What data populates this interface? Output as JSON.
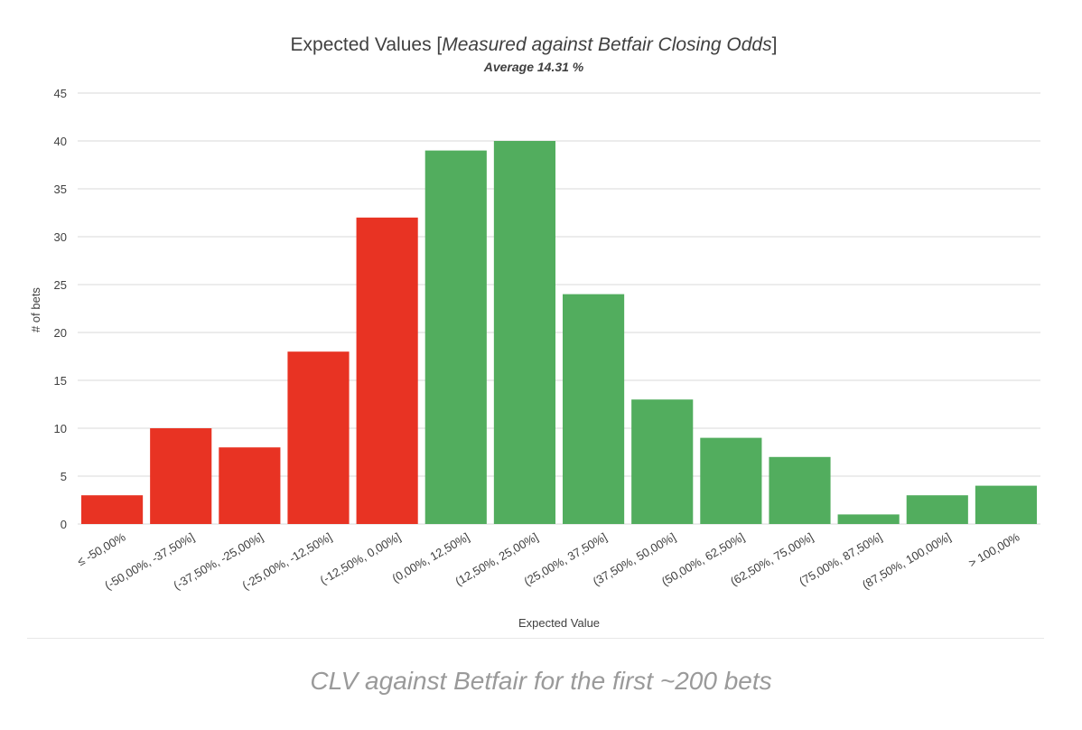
{
  "chart_data": {
    "type": "bar",
    "title_prefix": "Expected Values [",
    "title_emphasis": "Measured against Betfair Closing Odds",
    "title_suffix": "]",
    "subtitle": "Average 14.31 %",
    "xlabel": "Expected Value",
    "ylabel": "# of bets",
    "ylim": [
      0,
      45
    ],
    "yticks": [
      0,
      5,
      10,
      15,
      20,
      25,
      30,
      35,
      40,
      45
    ],
    "grid": true,
    "categories": [
      "≤ -50,00%",
      "(-50,00%, -37,50%]",
      "(-37,50%, -25,00%]",
      "(-25,00%, -12,50%]",
      "(-12,50%, 0,00%]",
      "(0,00%, 12,50%]",
      "(12,50%, 25,00%]",
      "(25,00%, 37,50%]",
      "(37,50%, 50,00%]",
      "(50,00%, 62,50%]",
      "(62,50%, 75,00%]",
      "(75,00%, 87,50%]",
      "(87,50%, 100,00%]",
      "> 100,00%"
    ],
    "values": [
      3,
      10,
      8,
      18,
      32,
      39,
      40,
      24,
      13,
      9,
      7,
      1,
      3,
      4
    ],
    "colors": {
      "negative": "#e83323",
      "positive": "#52ad5e"
    }
  },
  "caption": "CLV against Betfair for the first ~200 bets"
}
